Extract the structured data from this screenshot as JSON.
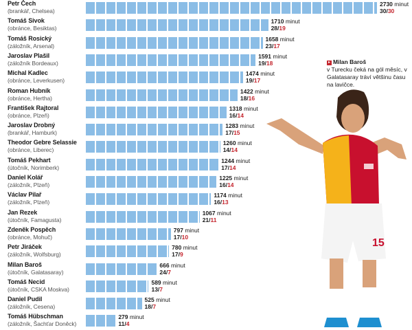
{
  "chart_data": {
    "type": "bar",
    "orientation": "horizontal",
    "title": "",
    "unit": "minut",
    "categories": [
      "Petr Čech",
      "Tomáš Sivok",
      "Tomáš Rosický",
      "Jaroslav Plašil",
      "Michal Kadlec",
      "Roman Hubník",
      "František Rajtoral",
      "Jaroslav Drobný",
      "Theodor Gebre Selassie",
      "Tomáš Pekhart",
      "Daniel Kolář",
      "Václav Pilař",
      "Jan Rezek",
      "Zdeněk Pospěch",
      "Petr Jiráček",
      "Milan Baroš",
      "Tomáš Necid",
      "Daniel Pudil",
      "Tomáš Hübschman"
    ],
    "details": [
      "(brankář, Chelsea)",
      "(obránce, Besiktas)",
      "(záložník, Arsenal)",
      "(záložník Bordeaux)",
      "(obránce, Leverkusen)",
      "(obránce, Hertha)",
      "(obránce, Plzeň)",
      "(brankář, Hamburk)",
      "(obránce, Liberec)",
      "(útočník, Norimberk)",
      "(záložník, Plzeň)",
      "(záložník, Plzeň)",
      "(útočník, Famagusta)",
      "(obránce, Mohuč)",
      "(záložník, Wolfsburg)",
      "(útočník, Galatasaray)",
      "(útočník, CSKA Moskva)",
      "(záložník, Cesena)",
      "(záložník, Šachťar Doněck)"
    ],
    "values": [
      2730,
      1710,
      1658,
      1591,
      1474,
      1422,
      1318,
      1283,
      1260,
      1244,
      1225,
      1174,
      1067,
      797,
      780,
      666,
      589,
      525,
      279
    ],
    "games": [
      "30",
      "28",
      "23",
      "19",
      "19",
      "18",
      "16",
      "17",
      "14",
      "17",
      "16",
      "16",
      "21",
      "17",
      "17",
      "24",
      "13",
      "18",
      "11"
    ],
    "starts": [
      "30",
      "19",
      "17",
      "18",
      "17",
      "16",
      "14",
      "15",
      "14",
      "14",
      "14",
      "13",
      "11",
      "10",
      "9",
      "7",
      "7",
      "7",
      "4"
    ],
    "xlim": [
      0,
      2730
    ],
    "grid": false,
    "bar_color": "#8bbde6",
    "accent_color": "#c4262e"
  },
  "callout": {
    "name": "Milan Baroš",
    "text": "v Turecku čeká na gól měsíc, v Galatasaray tráví většinu času na lavičce."
  }
}
